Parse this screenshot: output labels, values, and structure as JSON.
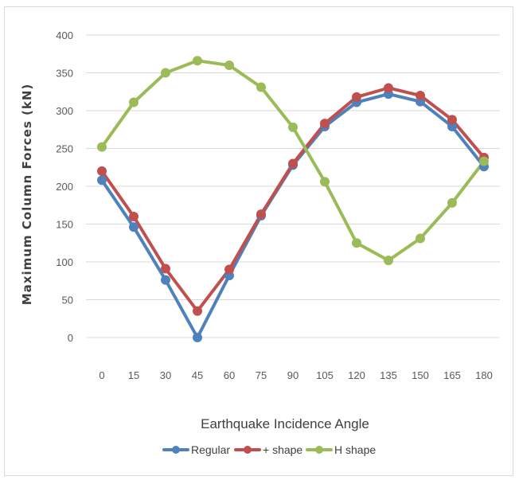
{
  "chart_data": {
    "type": "line",
    "title": "",
    "xlabel": "Earthquake Incidence Angle",
    "ylabel": "Maximum Column Forces (kN)",
    "x": [
      0,
      15,
      30,
      45,
      60,
      75,
      90,
      105,
      120,
      135,
      150,
      165,
      180
    ],
    "ylim": [
      0,
      400
    ],
    "yticks": [
      0,
      50,
      100,
      150,
      200,
      250,
      300,
      350,
      400
    ],
    "grid": true,
    "legend_position": "bottom",
    "series": [
      {
        "name": "Regular",
        "color": "#4f81bd",
        "values": [
          208,
          146,
          76,
          0,
          82,
          161,
          228,
          279,
          311,
          322,
          312,
          279,
          226
        ]
      },
      {
        "name": "+ shape",
        "color": "#c0504d",
        "values": [
          220,
          160,
          91,
          35,
          90,
          163,
          230,
          283,
          318,
          330,
          320,
          288,
          238
        ]
      },
      {
        "name": "H shape",
        "color": "#9bbb59",
        "values": [
          252,
          311,
          350,
          366,
          360,
          331,
          278,
          206,
          125,
          102,
          131,
          178,
          233
        ]
      }
    ]
  }
}
